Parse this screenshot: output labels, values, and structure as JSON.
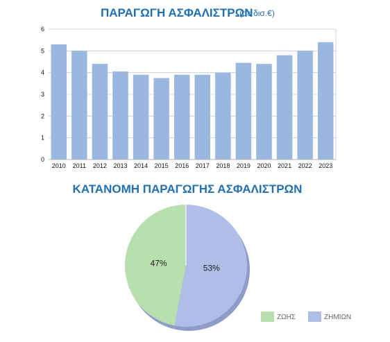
{
  "chart_data": [
    {
      "type": "bar",
      "title": "ΠΑΡΑΓΩΓΗ ΑΣΦΑΛΙΣΤΡΩΝ",
      "subtitle": "(σε δισ.€)",
      "categories": [
        "2010",
        "2011",
        "2012",
        "2013",
        "2014",
        "2015",
        "2016",
        "2017",
        "2018",
        "2019",
        "2020",
        "2021",
        "2022",
        "2023"
      ],
      "values": [
        5.3,
        5.0,
        4.4,
        4.05,
        3.9,
        3.75,
        3.9,
        3.9,
        4.0,
        4.45,
        4.4,
        4.8,
        5.0,
        5.4
      ],
      "ylim": [
        0,
        6
      ],
      "yticks": [
        "0",
        "1",
        "2",
        "3",
        "4",
        "5",
        "6"
      ],
      "grid": true,
      "bar_color": "#9ab7e0",
      "xlabel": "",
      "ylabel": ""
    },
    {
      "type": "pie",
      "title": "ΚΑΤΑΝΟΜΗ ΠΑΡΑΓΩΓΗΣ ΑΣΦΑΛΙΣΤΡΩΝ",
      "slices": [
        {
          "label": "ΖΩΗΣ",
          "value": 47,
          "display": "47%",
          "color": "#b8dfae"
        },
        {
          "label": "ΖΗΜΙΩΝ",
          "value": 53,
          "display": "53%",
          "color": "#aebee6"
        }
      ],
      "legend_position": "bottom-right"
    }
  ]
}
